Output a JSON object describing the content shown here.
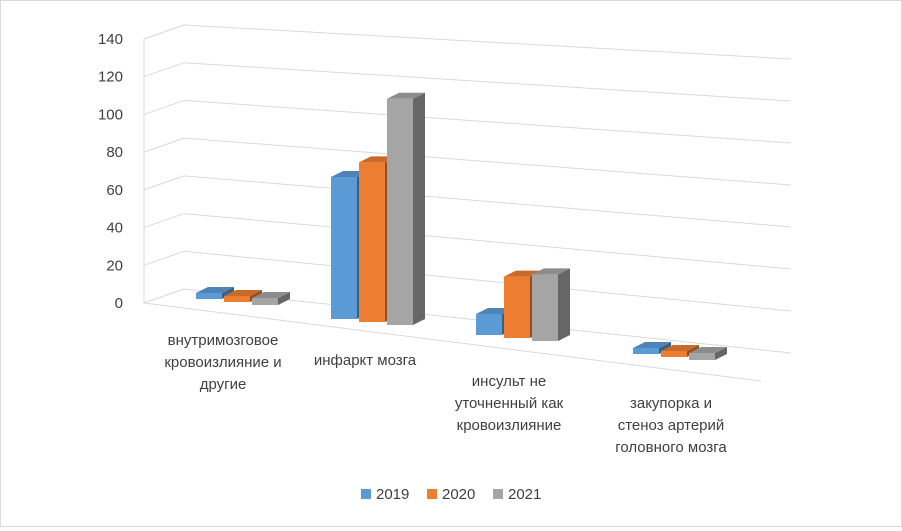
{
  "chart_data": {
    "type": "bar",
    "title": "",
    "categories": [
      [
        "внутримозговое",
        "кровоизлияние и",
        "другие"
      ],
      [
        "инфаркт мозга"
      ],
      [
        "инсульт не",
        "уточненный как",
        "кровоизлияние"
      ],
      [
        "закупорка и",
        "стеноз артерий",
        "головного мозга"
      ]
    ],
    "series": [
      {
        "name": "2019",
        "values": [
          2,
          81,
          12,
          1
        ]
      },
      {
        "name": "2020",
        "values": [
          3,
          91,
          35,
          2
        ]
      },
      {
        "name": "2021",
        "values": [
          4,
          129,
          38,
          4
        ]
      }
    ],
    "yticks": [
      0,
      20,
      40,
      60,
      80,
      100,
      120,
      140
    ],
    "ylim": [
      0,
      140
    ],
    "grid": true,
    "legend": "bottom",
    "colors": {
      "2019": "#5b9bd5",
      "2020": "#ed7d31",
      "2021": "#a5a5a5",
      "grid": "#d9d9d9",
      "text": "#404040"
    }
  }
}
